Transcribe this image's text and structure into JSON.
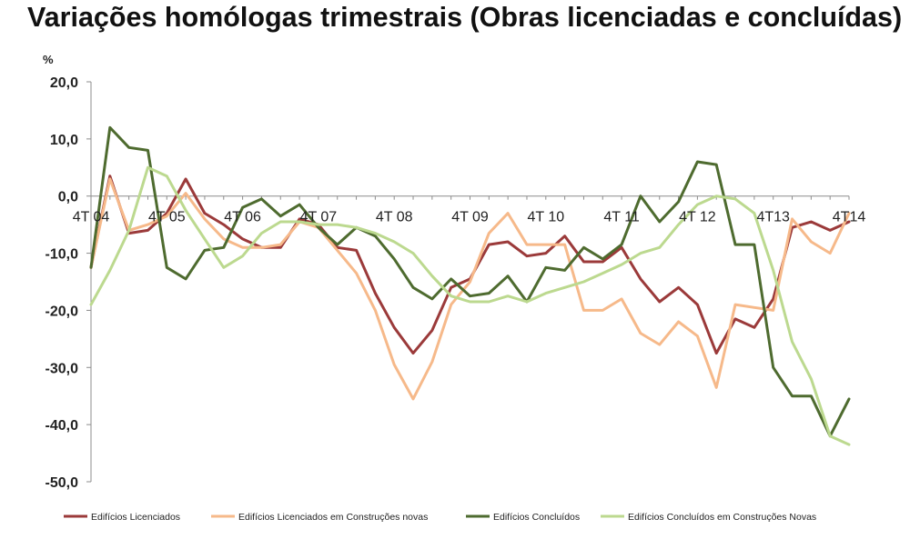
{
  "page": {
    "title": "Variações homólogas trimestrais (Obras licenciadas e concluídas)"
  },
  "colors": {
    "axis": "#8c8c8c",
    "grid": "#d9d9d9",
    "text": "#222222",
    "series": [
      "#9b3a3a",
      "#f6b98a",
      "#4e6b2f",
      "#bcd98f"
    ]
  },
  "chart_data": {
    "type": "line",
    "title": "",
    "ylabel": "%",
    "ylim": [
      -50,
      20
    ],
    "y_ticks": [
      "20,0",
      "10,0",
      "0,0",
      "-10,0",
      "-20,0",
      "-30,0",
      "-40,0",
      "-50,0"
    ],
    "x_ticks": [
      "4T 04",
      "4T 05",
      "4T 06",
      "4T 07",
      "4T 08",
      "4T 09",
      "4T 10",
      "4T 11",
      "4T 12",
      "4T13",
      "4T14"
    ],
    "x": [
      "4T04",
      "1T05",
      "2T05",
      "3T05",
      "4T05",
      "1T06",
      "2T06",
      "3T06",
      "4T06",
      "1T07",
      "2T07",
      "3T07",
      "4T07",
      "1T08",
      "2T08",
      "3T08",
      "4T08",
      "1T09",
      "2T09",
      "3T09",
      "4T09",
      "1T10",
      "2T10",
      "3T10",
      "4T10",
      "1T11",
      "2T11",
      "3T11",
      "4T11",
      "1T12",
      "2T12",
      "3T12",
      "4T12",
      "1T13",
      "2T13",
      "3T13",
      "4T13",
      "1T14",
      "2T14",
      "3T14",
      "4T14"
    ],
    "grid": false,
    "legend_position": "bottom",
    "series": [
      {
        "name": "Edifícios Licenciados",
        "values": [
          -12.5,
          3.5,
          -6.5,
          -6,
          -3,
          3,
          -3,
          -5,
          -7.5,
          -9,
          -9,
          -4,
          -5,
          -9,
          -9.5,
          -17,
          -23,
          -27.5,
          -23.5,
          -16,
          -14.5,
          -8.5,
          -8,
          -10.5,
          -10,
          -7,
          -11.5,
          -11.5,
          -9,
          -14.5,
          -18.5,
          -16,
          -19,
          -27.5,
          -21.5,
          -23,
          -18,
          -5.5,
          -4.5,
          -6,
          -4.5
        ]
      },
      {
        "name": "Edifícios Licenciados em Construções novas",
        "values": [
          -12.5,
          3,
          -6,
          -5,
          -3.5,
          0.5,
          -4,
          -7.5,
          -9,
          -9,
          -8.5,
          -4.5,
          -5.5,
          -9.5,
          -13.5,
          -20,
          -29.5,
          -35.5,
          -29,
          -19,
          -15,
          -6.5,
          -3,
          -8.5,
          -8.5,
          -8.5,
          -20,
          -20,
          -18,
          -24,
          -26,
          -22,
          -24.5,
          -33.5,
          -19,
          -19.5,
          -20,
          -4,
          -8,
          -10,
          -3
        ]
      },
      {
        "name": "Edifícios Concluídos",
        "values": [
          -12.5,
          12,
          8.5,
          8,
          -12.5,
          -14.5,
          -9.5,
          -9,
          -2,
          -0.5,
          -3.5,
          -1.5,
          -5.5,
          -8.5,
          -5.5,
          -7,
          -11,
          -16,
          -18,
          -14.5,
          -17.5,
          -17,
          -14,
          -18.5,
          -12.5,
          -13,
          -9,
          -11,
          -8.5,
          0,
          -4.5,
          -1,
          6,
          5.5,
          -8.5,
          -8.5,
          -30,
          -35,
          -35,
          -42,
          -35.5
        ]
      },
      {
        "name": "Edifícios Concluídos em Construções Novas",
        "values": [
          -19,
          -13,
          -6,
          5,
          3.5,
          -2.5,
          -7.5,
          -12.5,
          -10.5,
          -6.5,
          -4.5,
          -4.5,
          -5,
          -5,
          -5.5,
          -6.5,
          -8,
          -10,
          -14,
          -17.5,
          -18.5,
          -18.5,
          -17.5,
          -18.5,
          -17,
          -16,
          -15,
          -13.5,
          -12,
          -10,
          -9,
          -5,
          -1.5,
          0,
          -0.5,
          -3,
          -13,
          -25.5,
          -32,
          -42,
          -43.5
        ]
      }
    ]
  }
}
